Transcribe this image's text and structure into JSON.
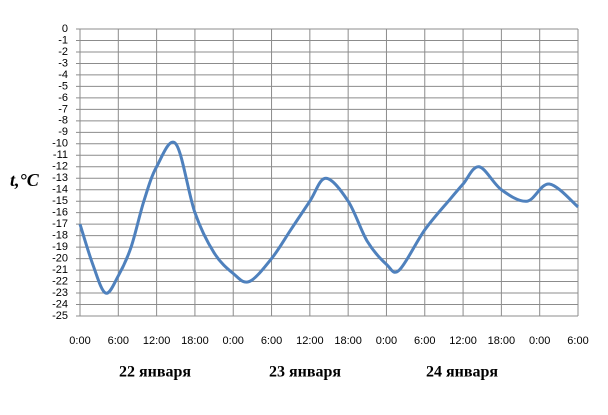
{
  "chart_data": {
    "type": "line",
    "y_label": "t,°C",
    "annotations": [
      "22 января",
      "23 января",
      "24 января"
    ],
    "x": [
      0,
      2,
      4,
      6,
      8,
      10,
      12,
      15,
      18,
      21,
      24,
      26.5,
      30,
      33,
      36,
      38.5,
      42,
      45,
      48,
      50,
      54,
      58,
      60,
      62.5,
      66,
      70,
      73.5,
      78
    ],
    "series": [
      {
        "name": "t",
        "color": "#4f81bd",
        "values": [
          -17,
          -20.5,
          -23,
          -21.5,
          -19,
          -15,
          -12,
          -10,
          -16,
          -19.5,
          -21.3,
          -22,
          -20,
          -17.5,
          -15,
          -13,
          -15,
          -18.5,
          -20.5,
          -21,
          -17.5,
          -14.8,
          -13.5,
          -12,
          -14,
          -15,
          -13.5,
          -15.5
        ]
      }
    ],
    "xlim": [
      0,
      78
    ],
    "xticks": [
      {
        "value": 0,
        "label": "0:00"
      },
      {
        "value": 6,
        "label": "6:00"
      },
      {
        "value": 12,
        "label": "12:00"
      },
      {
        "value": 18,
        "label": "18:00"
      },
      {
        "value": 24,
        "label": "0:00"
      },
      {
        "value": 30,
        "label": "6:00"
      },
      {
        "value": 36,
        "label": "12:00"
      },
      {
        "value": 42,
        "label": "18:00"
      },
      {
        "value": 48,
        "label": "0:00"
      },
      {
        "value": 54,
        "label": "6:00"
      },
      {
        "value": 60,
        "label": "12:00"
      },
      {
        "value": 66,
        "label": "18:00"
      },
      {
        "value": 72,
        "label": "0:00"
      },
      {
        "value": 78,
        "label": "6:00"
      }
    ],
    "ylim": [
      -25,
      0
    ],
    "yticks": [
      0,
      -1,
      -2,
      -3,
      -4,
      -5,
      -6,
      -7,
      -8,
      -9,
      -10,
      -11,
      -12,
      -13,
      -14,
      -15,
      -16,
      -17,
      -18,
      -19,
      -20,
      -21,
      -22,
      -23,
      -24,
      -25
    ],
    "grid": true
  }
}
